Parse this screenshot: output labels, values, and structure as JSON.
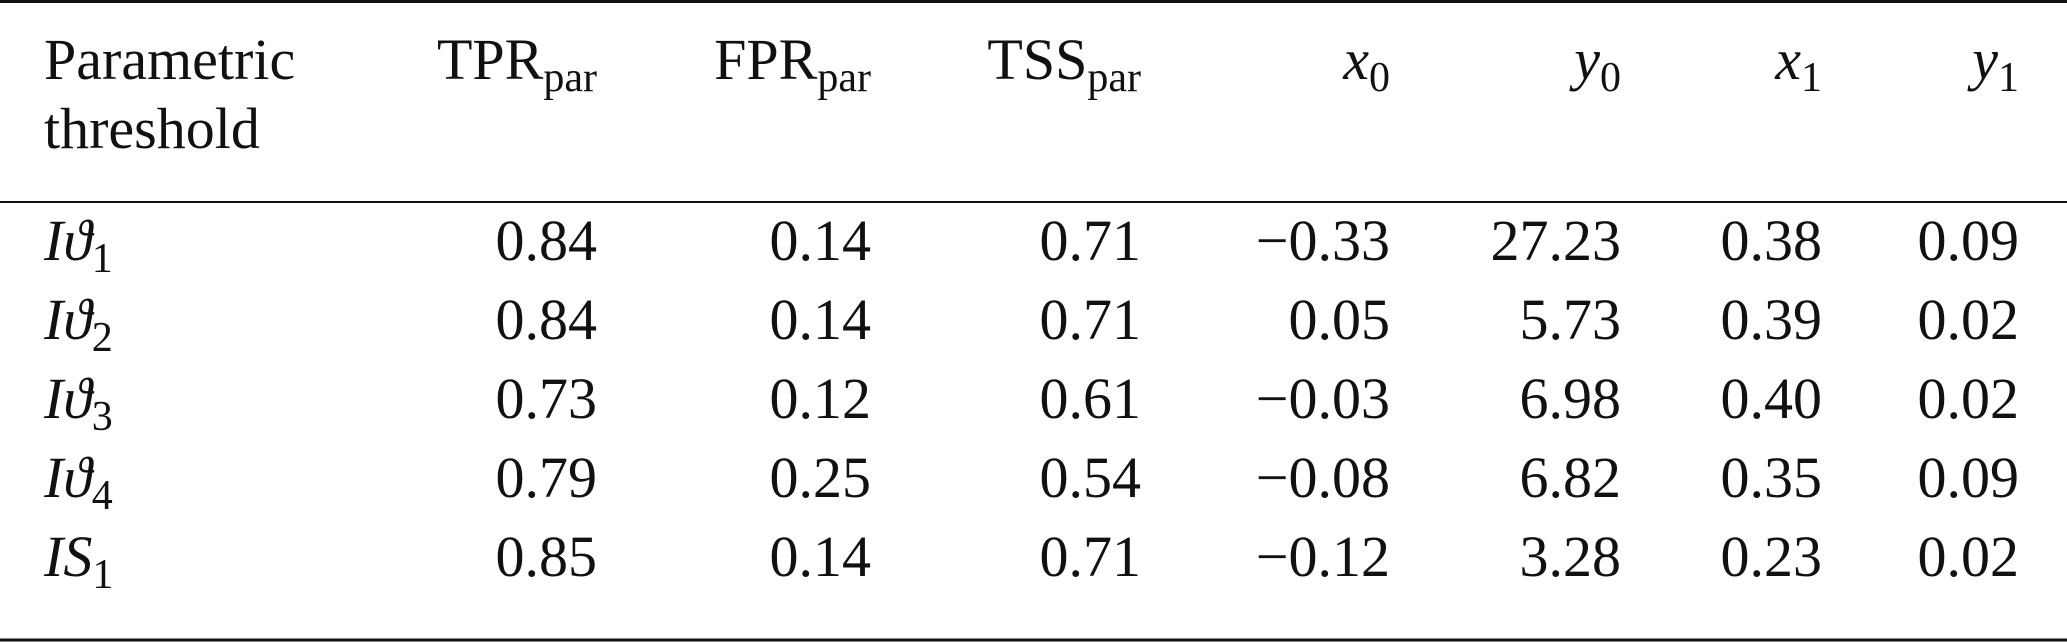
{
  "table": {
    "header": {
      "label": [
        "Parametric",
        "threshold"
      ],
      "columns": [
        {
          "main": "TPR",
          "sub": "par"
        },
        {
          "main": "FPR",
          "sub": "par"
        },
        {
          "main": "TSS",
          "sub": "par"
        },
        {
          "main": "x",
          "sub": "0"
        },
        {
          "main": "y",
          "sub": "0"
        },
        {
          "main": "x",
          "sub": "1"
        },
        {
          "main": "y",
          "sub": "1"
        }
      ]
    },
    "rows": [
      {
        "label": {
          "main": "Iϑ",
          "sub": "1"
        },
        "cells": [
          "0.84",
          "0.14",
          "0.71",
          "−0.33",
          "27.23",
          "0.38",
          "0.09"
        ]
      },
      {
        "label": {
          "main": "Iϑ",
          "sub": "2"
        },
        "cells": [
          "0.84",
          "0.14",
          "0.71",
          "0.05",
          "5.73",
          "0.39",
          "0.02"
        ]
      },
      {
        "label": {
          "main": "Iϑ",
          "sub": "3"
        },
        "cells": [
          "0.73",
          "0.12",
          "0.61",
          "−0.03",
          "6.98",
          "0.40",
          "0.02"
        ]
      },
      {
        "label": {
          "main": "Iϑ",
          "sub": "4"
        },
        "cells": [
          "0.79",
          "0.25",
          "0.54",
          "−0.08",
          "6.82",
          "0.35",
          "0.09"
        ]
      },
      {
        "label": {
          "main": "IS",
          "sub": "1"
        },
        "cells": [
          "0.85",
          "0.14",
          "0.71",
          "−0.12",
          "3.28",
          "0.23",
          "0.02"
        ]
      }
    ]
  }
}
